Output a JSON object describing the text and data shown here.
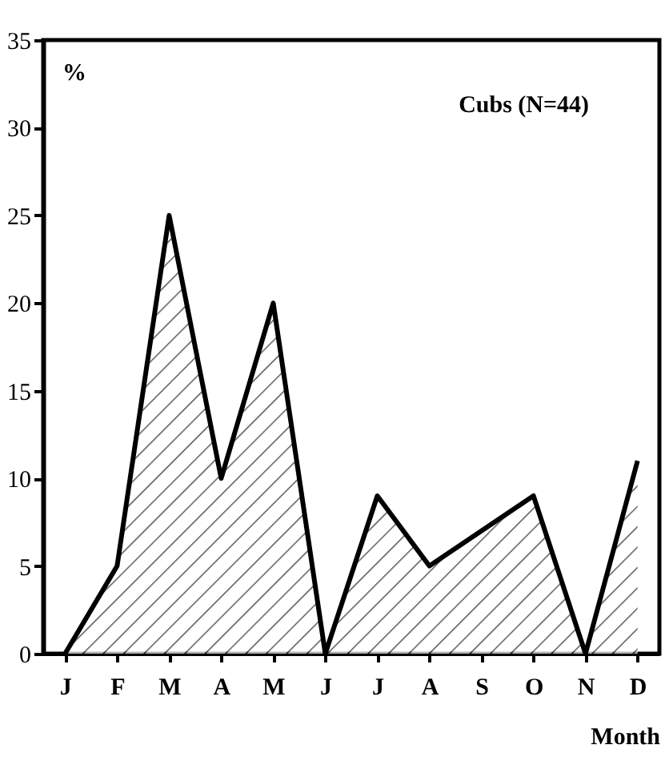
{
  "chart_data": {
    "type": "area",
    "xlabel": "Month",
    "annotations": [
      "%",
      "Cubs (N=44)"
    ],
    "categories": [
      "J",
      "F",
      "M",
      "A",
      "M",
      "J",
      "J",
      "A",
      "S",
      "O",
      "N",
      "D"
    ],
    "series": [
      {
        "color": "#000000",
        "values": [
          0,
          5,
          25,
          10,
          20,
          0,
          9,
          5,
          7,
          9,
          0,
          11
        ]
      }
    ],
    "ylim": [
      0,
      35
    ],
    "yticks": [
      0,
      5,
      10,
      15,
      20,
      25,
      30,
      35
    ],
    "grid": false,
    "marker": "none",
    "line_style": "solid"
  }
}
